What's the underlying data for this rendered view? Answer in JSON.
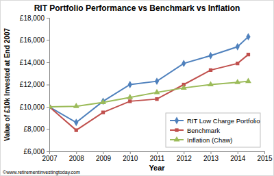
{
  "chart_data": {
    "type": "line",
    "title": "RIT Portfolio Performance vs Benchmark vs Inflation",
    "x_label": "Year",
    "y_label": "Value of £10k Invested at End 2007",
    "annotation": "©www.retirementinvestingtoday.com",
    "x": [
      2007,
      2008,
      2009,
      2010,
      2011,
      2012,
      2013,
      2014,
      2014.4
    ],
    "series": [
      {
        "name": "RIT Low Charge Portfolio",
        "color": "#4f81bd",
        "marker": "diamond",
        "values": [
          10000,
          8600,
          10500,
          12000,
          12300,
          13900,
          14600,
          15400,
          16300
        ]
      },
      {
        "name": "Benchmark",
        "color": "#c0504d",
        "marker": "square",
        "values": [
          10000,
          7900,
          9500,
          10500,
          10700,
          12000,
          13300,
          13900,
          14700
        ]
      },
      {
        "name": "Inflation (Chaw)",
        "color": "#9bbb59",
        "marker": "triangle",
        "values": [
          10000,
          10050,
          10400,
          10850,
          11300,
          11700,
          12000,
          12200,
          12300
        ]
      }
    ],
    "xlim": [
      2007,
      2015
    ],
    "xticks": [
      2007,
      2008,
      2009,
      2010,
      2011,
      2012,
      2013,
      2014,
      2015
    ],
    "ylim": [
      6000,
      18000
    ],
    "yticks": [
      {
        "value": 6000,
        "label": "£6,000"
      },
      {
        "value": 8000,
        "label": "£8,000"
      },
      {
        "value": 10000,
        "label": "£10,000"
      },
      {
        "value": 12000,
        "label": "£12,000"
      },
      {
        "value": 14000,
        "label": "£14,000"
      },
      {
        "value": 16000,
        "label": "£16,000"
      },
      {
        "value": 18000,
        "label": "£18,000"
      }
    ],
    "grid": false,
    "legend": "lower right"
  }
}
